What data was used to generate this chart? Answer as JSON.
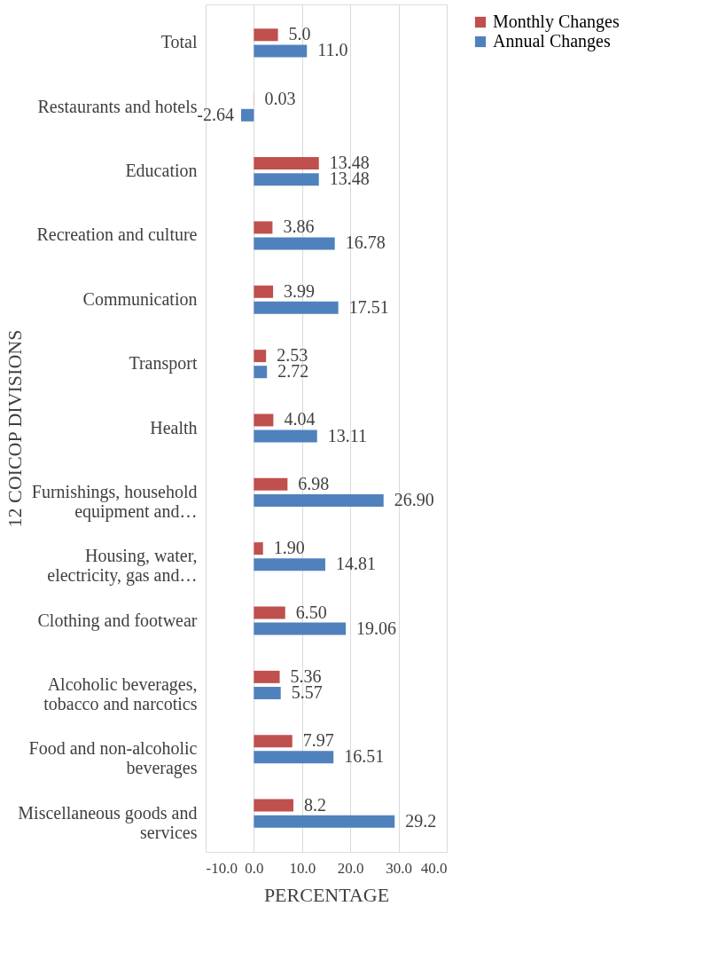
{
  "chart_data": {
    "type": "bar",
    "orientation": "horizontal",
    "xlabel": "PERCENTAGE",
    "ylabel": "12 COICOP DIVISIONS",
    "categories": [
      "Total",
      "Restaurants and hotels",
      "Education",
      "Recreation and culture",
      "Communication",
      "Transport",
      "Health",
      "Furnishings, household equipment and…",
      "Housing, water, electricity, gas and…",
      "Clothing and footwear",
      "Alcoholic beverages, tobacco and narcotics",
      "Food and non-alcoholic beverages",
      "Miscellaneous goods and services"
    ],
    "series": [
      {
        "name": "Monthly Changes",
        "color": "#c0504d",
        "values": [
          5.0,
          0.03,
          13.48,
          3.86,
          3.99,
          2.53,
          4.04,
          6.98,
          1.9,
          6.5,
          5.36,
          7.97,
          8.2
        ],
        "value_labels": [
          "5.0",
          "0.03",
          "13.48",
          "3.86",
          "3.99",
          "2.53",
          "4.04",
          "6.98",
          "1.90",
          "6.50",
          "5.36",
          "7.97",
          "8.2"
        ]
      },
      {
        "name": "Annual Changes",
        "color": "#4f81bd",
        "values": [
          11.0,
          -2.64,
          13.48,
          16.78,
          17.51,
          2.72,
          13.11,
          26.9,
          14.81,
          19.06,
          5.57,
          16.51,
          29.2
        ],
        "value_labels": [
          "11.0",
          "-2.64",
          "13.48",
          "16.78",
          "17.51",
          "2.72",
          "13.11",
          "26.90",
          "14.81",
          "19.06",
          "5.57",
          "16.51",
          "29.2"
        ]
      }
    ],
    "xlim": [
      -10,
      40
    ],
    "xticks": [
      {
        "value": -10,
        "label": "-10.0"
      },
      {
        "value": 0,
        "label": "0.0"
      },
      {
        "value": 10,
        "label": "10.0"
      },
      {
        "value": 20,
        "label": "20.0"
      },
      {
        "value": 30,
        "label": "30.0"
      },
      {
        "value": 40,
        "label": "40.0"
      }
    ],
    "grid": "x",
    "legend": "right"
  }
}
